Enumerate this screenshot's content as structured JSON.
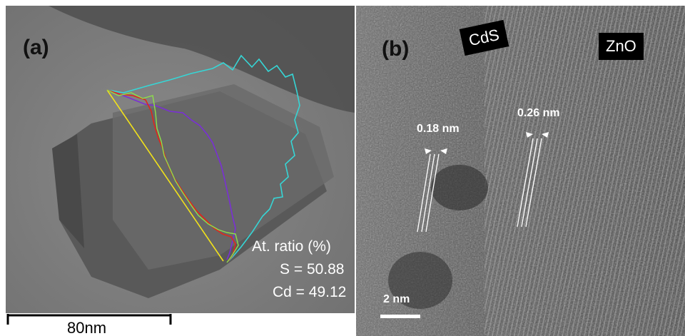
{
  "panel_a": {
    "label": "(a)",
    "ratio_title": "At. ratio (%)",
    "s_line": "S = 50.88",
    "cd_line": "Cd = 49.12",
    "scale_label": "80nm",
    "colors": {
      "yellow": "#f2e21a",
      "cyan": "#36d6d6",
      "purple": "#7a2fd6",
      "red": "#e0271b",
      "green": "#8ee04a"
    }
  },
  "panel_b": {
    "label": "(b)",
    "cds_label": "CdS",
    "zno_label": "ZnO",
    "spacing_cds": "0.18 nm",
    "spacing_zno": "0.26 nm",
    "scale_label": "2 nm"
  }
}
